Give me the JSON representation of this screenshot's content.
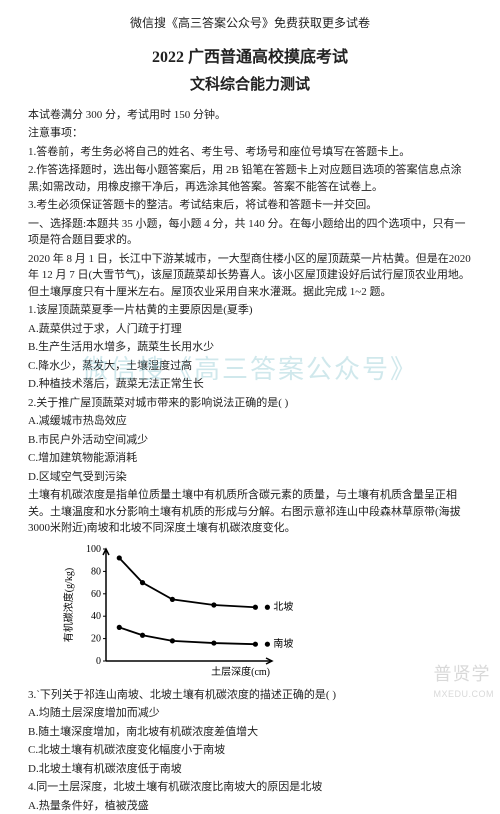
{
  "top_hint": "微信搜《高三答案公众号》免费获取更多试卷",
  "title_main": "2022 广西普通高校摸底考试",
  "title_sub": "文科综合能力测试",
  "intro1": "本试卷满分 300 分，考试用时 150 分钟。",
  "intro2": "注意事项：",
  "notes": [
    "1.答卷前，考生务必将自己的姓名、考生号、考场号和座位号填写在答题卡上。",
    "2.作答选择题时，选出每小题答案后，用 2B 铅笔在答题卡上对应题目选项的答案信息点涂黑;如需改动，用橡皮擦干净后，再选涂其他答案。答案不能答在试卷上。",
    "3.考生必须保证答题卡的整洁。考试结束后，将试卷和答题卡一并交回。",
    "一、选择题:本题共 35 小题，每小题 4 分，共 140 分。在每小题给出的四个选项中，只有一项是符合题目要求的。"
  ],
  "passage1": "2020 年 8 月 1 日，长江中下游某城市，一大型商住楼小区的屋顶蔬菜一片枯黄。但是在2020 年 12 月 7 日(大雪节气)，该屋顶蔬菜却长势喜人。该小区屋顶建设好后试行屋顶农业用地。但土壤厚度只有十厘米左右。屋顶农业采用自来水灌溉。据此完成 1~2 题。",
  "q1": "1.该屋顶蔬菜夏季一片枯黄的主要原因是(夏季)",
  "q1_opts": [
    "A.蔬菜供过于求，人门疏于打理",
    "B.生产生活用水增多，蔬菜生长用水少",
    "C.降水少，蒸发大，土壤湿度过高",
    "D.种植技术落后，蔬菜无法正常生长"
  ],
  "q2": "2.关于推广屋顶蔬菜对城市带来的影响说法正确的是( )",
  "q2_opts": [
    "A.减缓城市热岛效应",
    "B.市民户外活动空间减少",
    "C.增加建筑物能源消耗",
    "D.区域空气受到污染"
  ],
  "passage2": "土壤有机碳浓度是指单位质量土壤中有机质所含碳元素的质量，与土壤有机质含量呈正相关。土壤温度和水分影响土壤有机质的形成与分解。右图示意祁连山中段森林草原带(海拔3000米附近)南坡和北坡不同深度土壤有机碳浓度变化。",
  "q3": "3.`下列关于祁连山南坡、北坡土壤有机碳浓度的描述正确的是( )",
  "q3_opts": [
    "A.均随土层深度增加而减少",
    "B.随土壤深度增加，南北坡有机碳浓度差值增大",
    "C.北坡土壤有机碳浓度变化幅度小于南坡",
    "D.北坡土壤有机碳浓度低于南坡"
  ],
  "q4": "4.同一土层深度，北坡土壤有机碳浓度比南坡大的原因是北坡",
  "q4_opts": [
    "A.热量条件好，植被茂盛"
  ],
  "watermark": "微信搜《高三答案公众号》",
  "corner1": "普贤学",
  "corner2": "MXEDU.COM",
  "chart": {
    "type": "line",
    "xlabel": "土层深度(cm)",
    "ylabel": "有机碳浓度(g/kg)",
    "xlim": [
      0,
      100
    ],
    "ylim": [
      0,
      100
    ],
    "yticks": [
      0,
      20,
      40,
      60,
      80,
      100
    ],
    "label_fontsize": 10,
    "background": "#ffffff",
    "axis_color": "#000000",
    "series": [
      {
        "name": "北坡",
        "color": "#000000",
        "marker": "circle",
        "x": [
          8,
          22,
          40,
          65,
          90
        ],
        "y": [
          92,
          70,
          55,
          50,
          48
        ]
      },
      {
        "name": "南坡",
        "color": "#000000",
        "marker": "circle",
        "x": [
          8,
          22,
          40,
          65,
          90
        ],
        "y": [
          30,
          23,
          18,
          16,
          15
        ]
      }
    ],
    "legend_pos": "right"
  }
}
